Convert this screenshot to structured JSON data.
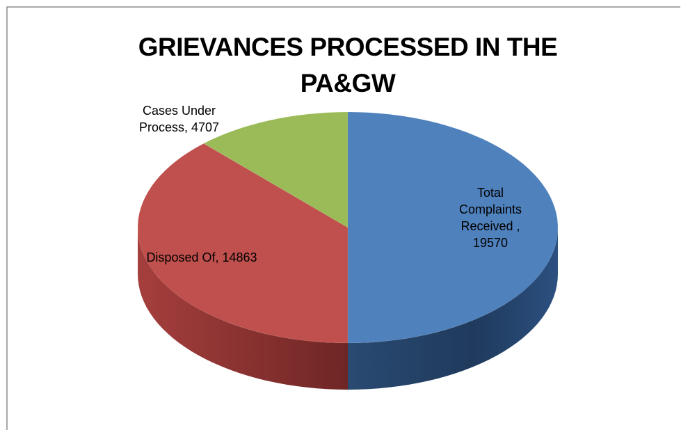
{
  "chart_data": {
    "type": "pie",
    "title": "GRIEVANCES PROCESSED IN THE PA&GW",
    "values": [
      19570,
      14863,
      4707
    ],
    "value_labels": [
      "Total Complaints Received , 19570",
      "Disposed Of, 14863",
      "Cases Under Process, 4707"
    ],
    "colors": [
      "#4f81bd",
      "#c0504d",
      "#9bbb59"
    ],
    "three_d": true
  }
}
